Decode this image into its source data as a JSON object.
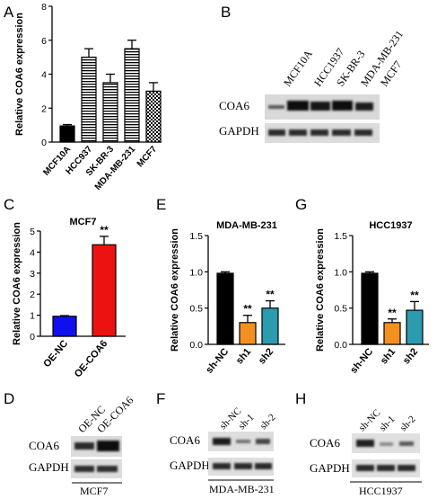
{
  "panels": {
    "A": {
      "letter": "A"
    },
    "B": {
      "letter": "B",
      "lanes": [
        "MCF10A",
        "HCC1937",
        "SK-BR-3",
        "MDA-MB-231",
        "MCF7"
      ],
      "rows": [
        "COA6",
        "GAPDH"
      ]
    },
    "C": {
      "letter": "C"
    },
    "D": {
      "letter": "D",
      "lanes": [
        "OE-NC",
        "OE-COA6"
      ],
      "rows": [
        "COA6",
        "GAPDH"
      ],
      "cell_line": "MCF7"
    },
    "E": {
      "letter": "E"
    },
    "F": {
      "letter": "F",
      "lanes": [
        "sh-NC",
        "sh-1",
        "sh-2"
      ],
      "rows": [
        "COA6",
        "GAPDH"
      ],
      "cell_line": "MDA-MB-231"
    },
    "G": {
      "letter": "G"
    },
    "H": {
      "letter": "H",
      "lanes": [
        "sh-NC",
        "sh-1",
        "sh-2"
      ],
      "rows": [
        "COA6",
        "GAPDH"
      ],
      "cell_line": "HCC1937"
    }
  },
  "chart_data": [
    {
      "panel": "A",
      "type": "bar",
      "title": "",
      "ylabel": "Relative COA6 expression",
      "xlabel": "",
      "categories": [
        "MCF10A",
        "HCC937",
        "SK-BR-3",
        "MDA-MB-231",
        "MCF7"
      ],
      "values": [
        0.95,
        5.0,
        3.5,
        5.5,
        3.0
      ],
      "errors": [
        0.08,
        0.5,
        0.5,
        0.5,
        0.5
      ],
      "fills": [
        "solid-black",
        "horizontal-stripes",
        "horizontal-stripes",
        "horizontal-stripes",
        "checker"
      ],
      "ylim": [
        0,
        8
      ],
      "yticks": [
        0,
        2,
        4,
        6,
        8
      ],
      "significance": [
        "",
        "",
        "",
        "",
        ""
      ]
    },
    {
      "panel": "C",
      "type": "bar",
      "title": "MCF7",
      "ylabel": "Relative COA6 expression",
      "xlabel": "",
      "categories": [
        "OE-NC",
        "OE-COA6"
      ],
      "values": [
        0.95,
        4.35
      ],
      "errors": [
        0.03,
        0.4
      ],
      "colors": [
        "#1010ee",
        "#ee1111"
      ],
      "ylim": [
        0,
        5
      ],
      "yticks": [
        0,
        1,
        2,
        3,
        4,
        5
      ],
      "significance": [
        "",
        "**"
      ]
    },
    {
      "panel": "E",
      "type": "bar",
      "title": "MDA-MB-231",
      "ylabel": "Relative COA6 expression",
      "xlabel": "",
      "categories": [
        "sh-NC",
        "sh1",
        "sh2"
      ],
      "values": [
        0.98,
        0.3,
        0.5
      ],
      "errors": [
        0.02,
        0.1,
        0.1
      ],
      "colors": [
        "#000000",
        "#f5901f",
        "#2b9bb0"
      ],
      "ylim": [
        0,
        1.5
      ],
      "yticks": [
        0.0,
        0.5,
        1.0,
        1.5
      ],
      "significance": [
        "",
        "**",
        "**"
      ]
    },
    {
      "panel": "G",
      "type": "bar",
      "title": "HCC1937",
      "ylabel": "Relative COA6 expression",
      "xlabel": "",
      "categories": [
        "sh-NC",
        "sh1",
        "sh2"
      ],
      "values": [
        0.98,
        0.3,
        0.47
      ],
      "errors": [
        0.02,
        0.05,
        0.12
      ],
      "colors": [
        "#000000",
        "#f5901f",
        "#2b9bb0"
      ],
      "ylim": [
        0,
        1.5
      ],
      "yticks": [
        0.0,
        0.5,
        1.0,
        1.5
      ],
      "significance": [
        "",
        "**",
        "**"
      ]
    }
  ]
}
